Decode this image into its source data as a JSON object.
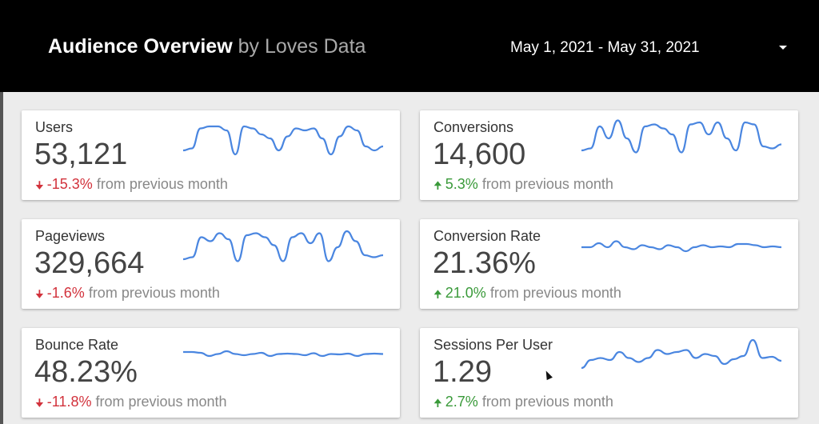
{
  "header": {
    "title": "Audience Overview",
    "subtitle": "by Loves Data",
    "date_range": "May 1, 2021 - May 31, 2021"
  },
  "colors": {
    "line": "#4a86e0",
    "down": "#d2323c",
    "up": "#3a9a3a"
  },
  "cards": [
    {
      "label": "Users",
      "value": "53,121",
      "direction": "down",
      "change": "-15.3%",
      "suffix": "from previous month",
      "spark": [
        0.2,
        0.25,
        0.75,
        0.8,
        0.8,
        0.7,
        0.1,
        0.8,
        0.75,
        0.6,
        0.5,
        0.2,
        0.55,
        0.75,
        0.7,
        0.75,
        0.5,
        0.1,
        0.55,
        0.8,
        0.7,
        0.3,
        0.2,
        0.3
      ]
    },
    {
      "label": "Conversions",
      "value": "14,600",
      "direction": "up",
      "change": "5.3%",
      "suffix": "from previous month",
      "spark": [
        0.2,
        0.25,
        0.8,
        0.5,
        0.95,
        0.5,
        0.15,
        0.8,
        0.85,
        0.75,
        0.6,
        0.15,
        0.85,
        0.9,
        0.6,
        0.9,
        0.5,
        0.2,
        0.9,
        0.85,
        0.3,
        0.25,
        0.35
      ]
    },
    {
      "label": "Pageviews",
      "value": "329,664",
      "direction": "down",
      "change": "-1.6%",
      "suffix": "from previous month",
      "spark": [
        0.2,
        0.25,
        0.75,
        0.65,
        0.85,
        0.7,
        0.15,
        0.8,
        0.85,
        0.75,
        0.55,
        0.15,
        0.75,
        0.85,
        0.6,
        0.85,
        0.15,
        0.5,
        0.9,
        0.65,
        0.3,
        0.25,
        0.3
      ]
    },
    {
      "label": "Conversion Rate",
      "value": "21.36%",
      "direction": "up",
      "change": "21.0%",
      "suffix": "from previous month",
      "spark": [
        0.5,
        0.5,
        0.6,
        0.5,
        0.65,
        0.5,
        0.45,
        0.55,
        0.5,
        0.45,
        0.55,
        0.5,
        0.4,
        0.5,
        0.55,
        0.5,
        0.52,
        0.5,
        0.58,
        0.58,
        0.55,
        0.5,
        0.52,
        0.5
      ]
    },
    {
      "label": "Bounce Rate",
      "value": "48.23%",
      "direction": "down",
      "change": "-11.8%",
      "suffix": "from previous month",
      "spark": [
        0.6,
        0.6,
        0.58,
        0.5,
        0.55,
        0.62,
        0.55,
        0.52,
        0.55,
        0.58,
        0.5,
        0.55,
        0.56,
        0.55,
        0.52,
        0.57,
        0.5,
        0.55,
        0.54,
        0.56,
        0.5,
        0.55,
        0.56,
        0.55
      ]
    },
    {
      "label": "Sessions Per User",
      "value": "1.29",
      "direction": "up",
      "change": "2.7%",
      "suffix": "from previous month",
      "spark": [
        0.2,
        0.4,
        0.45,
        0.4,
        0.6,
        0.45,
        0.35,
        0.45,
        0.65,
        0.55,
        0.6,
        0.65,
        0.45,
        0.55,
        0.5,
        0.3,
        0.42,
        0.5,
        0.9,
        0.45,
        0.48,
        0.38
      ]
    }
  ]
}
